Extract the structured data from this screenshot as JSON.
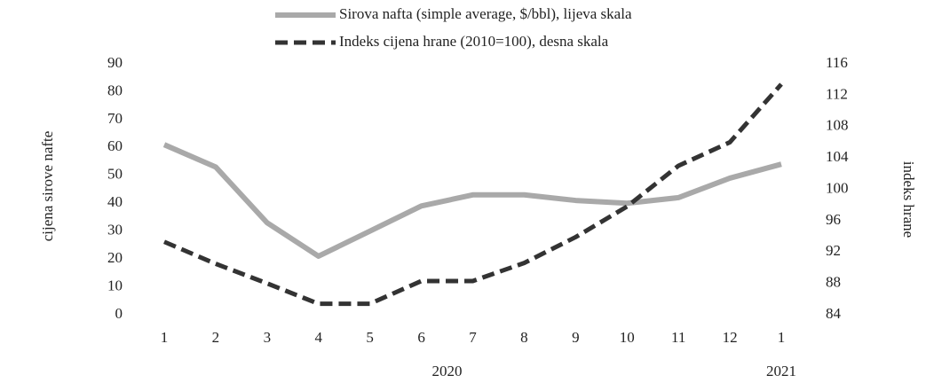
{
  "chart_data": {
    "type": "line",
    "categories": [
      "1",
      "2",
      "3",
      "4",
      "5",
      "6",
      "7",
      "8",
      "9",
      "10",
      "11",
      "12",
      "1"
    ],
    "x_groups": [
      {
        "label": "2020",
        "from": 0,
        "to": 11
      },
      {
        "label": "2021",
        "from": 12,
        "to": 12
      }
    ],
    "series": [
      {
        "name": "Sirova nafta (simple average, $/bbl), lijeva skala",
        "color": "#a9a9a9",
        "dashed": false,
        "axis": "y",
        "values": [
          61,
          53,
          33,
          21,
          30,
          39,
          43,
          43,
          41,
          40,
          42,
          49,
          54
        ]
      },
      {
        "name": "Indeks cijena hrane (2010=100), desna skala",
        "color": "#333333",
        "dashed": true,
        "axis": "y2",
        "values": [
          93.3,
          90.5,
          88,
          85.4,
          85.4,
          88.3,
          88.3,
          90.6,
          93.9,
          97.8,
          103,
          106,
          113.4
        ]
      }
    ],
    "ylabel": "cijena sirove nafte",
    "y2label": "indeks hrane",
    "ylim": [
      0,
      90
    ],
    "yticks": [
      0,
      10,
      20,
      30,
      40,
      50,
      60,
      70,
      80,
      90
    ],
    "y2lim": [
      84,
      116
    ],
    "y2ticks": [
      84,
      88,
      92,
      96,
      100,
      104,
      108,
      112,
      116
    ],
    "grid": false,
    "legend": "top"
  }
}
